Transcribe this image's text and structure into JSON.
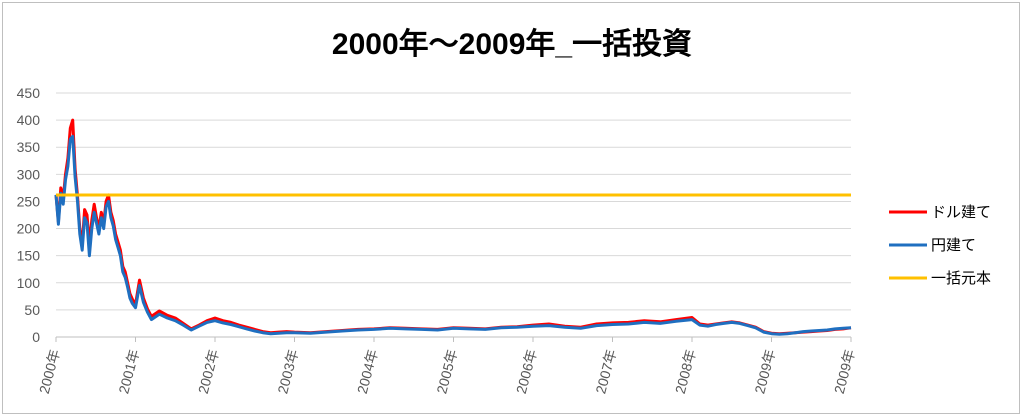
{
  "colors": {
    "usd": "#ff0000",
    "jpy": "#1f6fc0",
    "principal": "#ffc000",
    "grid": "#d9d9d9",
    "axis": "#bfbfbf"
  },
  "chart_data": {
    "type": "line",
    "title": "2000年～2009年_一括投資",
    "xlabel": "",
    "ylabel": "",
    "ylim": [
      0,
      450
    ],
    "yticks": [
      "0",
      "50",
      "100",
      "150",
      "200",
      "250",
      "300",
      "350",
      "400",
      "450"
    ],
    "xticks": [
      "2000年",
      "2001年",
      "2002年",
      "2003年",
      "2004年",
      "2005年",
      "2006年",
      "2007年",
      "2008年",
      "2009年",
      "2009年"
    ],
    "grid": true,
    "legend_position": "right",
    "x": [
      2000.0,
      2000.03,
      2000.06,
      2000.09,
      2000.12,
      2000.15,
      2000.18,
      2000.21,
      2000.24,
      2000.27,
      2000.3,
      2000.33,
      2000.36,
      2000.39,
      2000.42,
      2000.45,
      2000.48,
      2000.51,
      2000.54,
      2000.57,
      2000.6,
      2000.63,
      2000.66,
      2000.69,
      2000.72,
      2000.75,
      2000.78,
      2000.81,
      2000.84,
      2000.87,
      2000.9,
      2000.93,
      2000.96,
      2001.0,
      2001.05,
      2001.1,
      2001.15,
      2001.2,
      2001.3,
      2001.4,
      2001.5,
      2001.6,
      2001.7,
      2001.8,
      2001.9,
      2002.0,
      2002.1,
      2002.2,
      2002.3,
      2002.4,
      2002.5,
      2002.6,
      2002.7,
      2002.8,
      2002.9,
      2003.0,
      2003.2,
      2003.4,
      2003.6,
      2003.8,
      2004.0,
      2004.2,
      2004.4,
      2004.6,
      2004.8,
      2005.0,
      2005.2,
      2005.4,
      2005.6,
      2005.8,
      2006.0,
      2006.2,
      2006.4,
      2006.6,
      2006.8,
      2007.0,
      2007.2,
      2007.4,
      2007.6,
      2007.8,
      2008.0,
      2008.1,
      2008.2,
      2008.3,
      2008.4,
      2008.5,
      2008.6,
      2008.7,
      2008.8,
      2008.9,
      2009.0,
      2009.1,
      2009.2,
      2009.3,
      2009.4,
      2009.5,
      2009.6,
      2009.7,
      2009.8,
      2009.9,
      2010.0
    ],
    "series": [
      {
        "name": "ドル建て",
        "color": "#ff0000",
        "values": [
          262,
          212,
          275,
          255,
          300,
          330,
          385,
          400,
          310,
          260,
          200,
          170,
          235,
          225,
          170,
          215,
          245,
          220,
          200,
          230,
          210,
          250,
          262,
          230,
          215,
          190,
          175,
          160,
          130,
          120,
          100,
          80,
          70,
          60,
          105,
          72,
          52,
          38,
          48,
          40,
          35,
          25,
          15,
          22,
          30,
          35,
          30,
          27,
          22,
          18,
          14,
          10,
          8,
          9,
          10,
          9,
          8,
          10,
          12,
          14,
          15,
          17,
          16,
          15,
          14,
          17,
          16,
          15,
          18,
          19,
          22,
          24,
          20,
          18,
          24,
          26,
          27,
          30,
          28,
          32,
          36,
          24,
          22,
          24,
          26,
          28,
          26,
          22,
          18,
          10,
          7,
          6,
          7,
          8,
          9,
          10,
          11,
          12,
          14,
          15,
          17
        ]
      },
      {
        "name": "円建て",
        "color": "#1f6fc0",
        "values": [
          262,
          208,
          265,
          245,
          290,
          315,
          365,
          370,
          295,
          250,
          190,
          160,
          220,
          210,
          150,
          200,
          230,
          210,
          190,
          220,
          200,
          240,
          250,
          220,
          205,
          180,
          165,
          150,
          120,
          110,
          92,
          72,
          62,
          54,
          95,
          64,
          46,
          32,
          42,
          35,
          30,
          22,
          13,
          20,
          27,
          30,
          26,
          23,
          19,
          15,
          11,
          8,
          6,
          7,
          8,
          8,
          7,
          9,
          11,
          13,
          14,
          16,
          15,
          14,
          13,
          16,
          15,
          14,
          17,
          18,
          20,
          21,
          18,
          16,
          21,
          23,
          24,
          27,
          25,
          29,
          32,
          22,
          20,
          23,
          25,
          27,
          25,
          21,
          17,
          9,
          6,
          5,
          6,
          8,
          10,
          11,
          12,
          13,
          15,
          16,
          17
        ]
      },
      {
        "name": "一括元本",
        "color": "#ffc000",
        "constant": 262
      }
    ]
  },
  "legend": [
    {
      "label": "ドル建て",
      "color": "#ff0000"
    },
    {
      "label": "円建て",
      "color": "#1f6fc0"
    },
    {
      "label": "一括元本",
      "color": "#ffc000"
    }
  ]
}
